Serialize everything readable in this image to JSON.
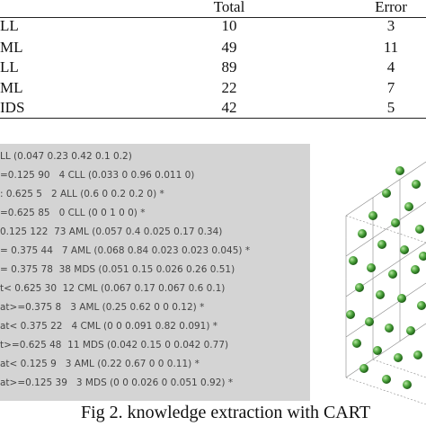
{
  "table": {
    "columns": [
      "Total",
      "Error"
    ],
    "rows": [
      [
        "LL",
        10,
        3
      ],
      [
        "ML",
        49,
        11
      ],
      [
        "LL",
        89,
        4
      ],
      [
        "ML",
        22,
        7
      ],
      [
        "IDS",
        42,
        5
      ]
    ]
  },
  "tree": {
    "lines": [
      "LL (0.047 0.23 0.42 0.1 0.2)",
      "=0.125 90   4 CLL (0.033 0 0.96 0.011 0)",
      ": 0.625 5   2 ALL (0.6 0 0.2 0.2 0) *",
      "=0.625 85   0 CLL (0 0 1 0 0) *",
      "0.125 122  73 AML (0.057 0.4 0.025 0.17 0.34)",
      "= 0.375 44   7 AML (0.068 0.84 0.023 0.023 0.045) *",
      "= 0.375 78  38 MDS (0.051 0.15 0.026 0.26 0.51)",
      "t< 0.625 30  12 CML (0.067 0.17 0.067 0.6 0.1)",
      "at>=0.375 8   3 AML (0.25 0.62 0 0 0.12) *",
      "at< 0.375 22   4 CML (0 0 0.091 0.82 0.091) *",
      "t>=0.625 48  11 MDS (0.042 0.15 0 0.042 0.77)",
      "at< 0.125 9   3 AML (0.22 0.67 0 0 0.11) *",
      "at>=0.125 39   3 MDS (0 0 0.026 0 0.051 0.92) *"
    ]
  },
  "caption": "Fig 2. knowledge extraction with CART"
}
